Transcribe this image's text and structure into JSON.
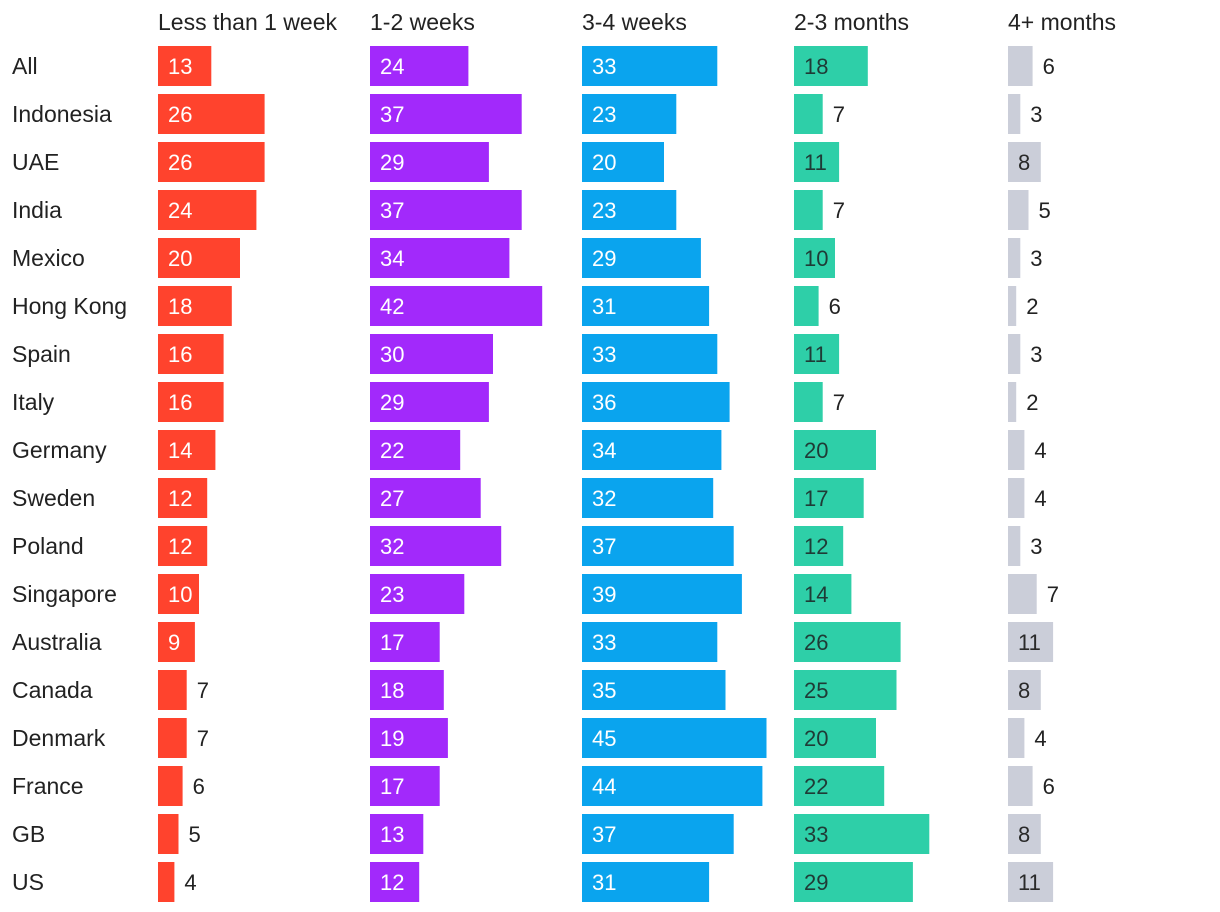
{
  "chart_data": {
    "type": "bar",
    "title": "",
    "categories": [
      "All",
      "Indonesia",
      "UAE",
      "India",
      "Mexico",
      "Hong Kong",
      "Spain",
      "Italy",
      "Germany",
      "Sweden",
      "Poland",
      "Singapore",
      "Australia",
      "Canada",
      "Denmark",
      "France",
      "GB",
      "US"
    ],
    "series": [
      {
        "name": "Less than 1 week",
        "color": "#ff432d",
        "label_inside_color": "#ffffff",
        "values": [
          13,
          26,
          26,
          24,
          20,
          18,
          16,
          16,
          14,
          12,
          12,
          10,
          9,
          7,
          7,
          6,
          5,
          4
        ]
      },
      {
        "name": "1-2 weeks",
        "color": "#a229fb",
        "label_inside_color": "#ffffff",
        "values": [
          24,
          37,
          29,
          37,
          34,
          42,
          30,
          29,
          22,
          27,
          32,
          23,
          17,
          18,
          19,
          17,
          13,
          12
        ]
      },
      {
        "name": "3-4 weeks",
        "color": "#0aa4ee",
        "label_inside_color": "#ffffff",
        "values": [
          33,
          23,
          20,
          23,
          29,
          31,
          33,
          36,
          34,
          32,
          37,
          39,
          33,
          35,
          45,
          44,
          37,
          31
        ]
      },
      {
        "name": "2-3 months",
        "color": "#2ecfa8",
        "label_inside_color": "#1f3b36",
        "values": [
          18,
          7,
          11,
          7,
          10,
          6,
          11,
          7,
          20,
          17,
          12,
          14,
          26,
          25,
          20,
          22,
          33,
          29
        ]
      },
      {
        "name": "4+ months",
        "color": "#cbced9",
        "label_inside_color": "#2a2a2a",
        "values": [
          6,
          3,
          8,
          5,
          3,
          2,
          3,
          2,
          4,
          4,
          3,
          7,
          11,
          8,
          4,
          6,
          8,
          11
        ]
      }
    ],
    "xlabel": "",
    "ylabel": "",
    "grid": false,
    "legend": "column headers at top"
  }
}
